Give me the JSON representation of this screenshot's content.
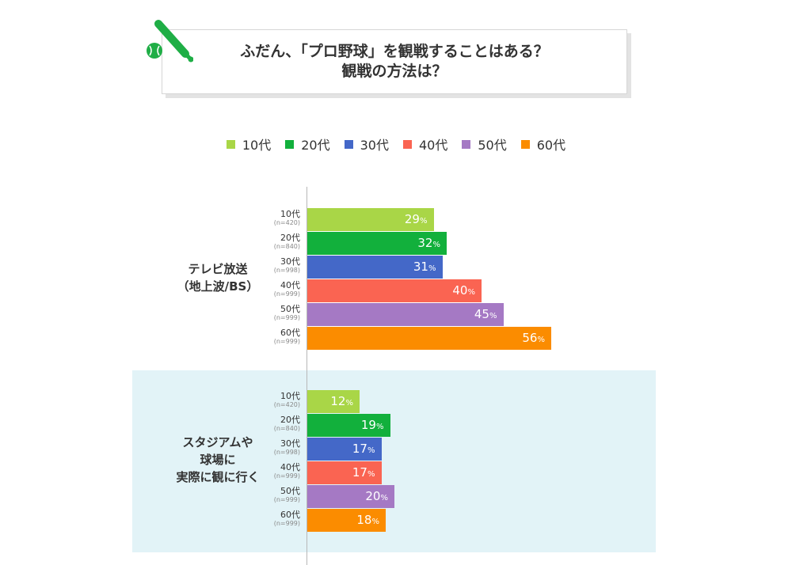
{
  "header": {
    "title_line1": "ふだん、「プロ野球」を観戦することはある？",
    "title_line2": "観戦の方法は？",
    "icon": "baseball-bat-icon"
  },
  "colors": {
    "10代": "#a9d647",
    "20代": "#12b03c",
    "30代": "#4468c8",
    "40代": "#fa6452",
    "50代": "#a579c4",
    "60代": "#fb8c00",
    "panel_background": "#e2f3f7"
  },
  "chart_data": {
    "type": "bar",
    "orientation": "horizontal",
    "unit": "%",
    "xlim": [
      0,
      100
    ],
    "legend": [
      "10代",
      "20代",
      "30代",
      "40代",
      "50代",
      "60代"
    ],
    "legend_position": "top",
    "groups": [
      {
        "label": "テレビ放送\n（地上波/BS）",
        "rows": [
          {
            "age": "10代",
            "n": "(n=420)",
            "value": 29
          },
          {
            "age": "20代",
            "n": "(n=840)",
            "value": 32
          },
          {
            "age": "30代",
            "n": "(n=998)",
            "value": 31
          },
          {
            "age": "40代",
            "n": "(n=999)",
            "value": 40
          },
          {
            "age": "50代",
            "n": "(n=999)",
            "value": 45
          },
          {
            "age": "60代",
            "n": "(n=999)",
            "value": 56
          }
        ]
      },
      {
        "label": "スタジアムや\n球場に\n実際に観に行く",
        "rows": [
          {
            "age": "10代",
            "n": "(n=420)",
            "value": 12
          },
          {
            "age": "20代",
            "n": "(n=840)",
            "value": 19
          },
          {
            "age": "30代",
            "n": "(n=998)",
            "value": 17
          },
          {
            "age": "40代",
            "n": "(n=999)",
            "value": 17
          },
          {
            "age": "50代",
            "n": "(n=999)",
            "value": 20
          },
          {
            "age": "60代",
            "n": "(n=999)",
            "value": 18
          }
        ]
      }
    ]
  }
}
